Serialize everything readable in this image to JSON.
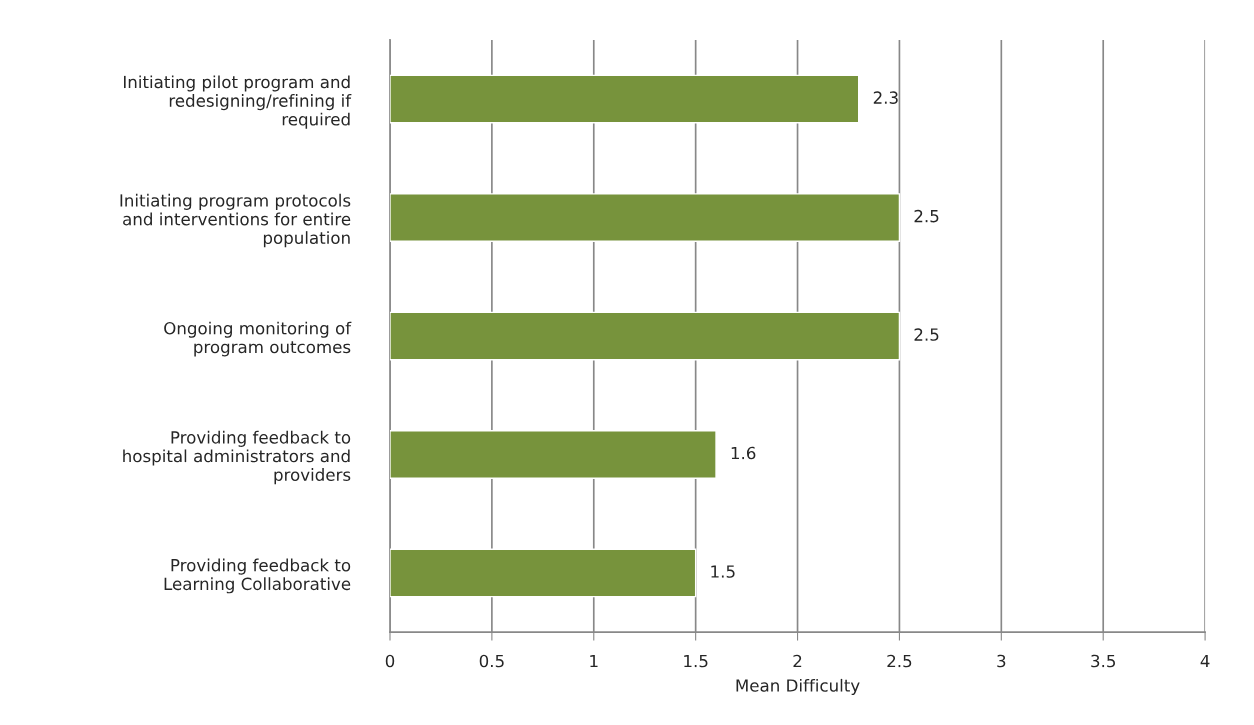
{
  "chart_data": {
    "type": "bar",
    "orientation": "horizontal",
    "categories": [
      "Initiating pilot program and redesigning/refining if required",
      "Initiating program protocols and interventions for entire population",
      "Ongoing monitoring of program outcomes",
      "Providing feedback to hospital administrators and providers",
      "Providing feedback to Learning Collaborative"
    ],
    "values": [
      2.3,
      2.5,
      2.5,
      1.6,
      1.5
    ],
    "color": "#77933c",
    "xlabel": "Mean Difficulty",
    "xlim": [
      0,
      4
    ],
    "xticks": [
      0,
      0.5,
      1,
      1.5,
      2,
      2.5,
      3,
      3.5,
      4
    ],
    "grid": "x",
    "data_labels": true
  }
}
